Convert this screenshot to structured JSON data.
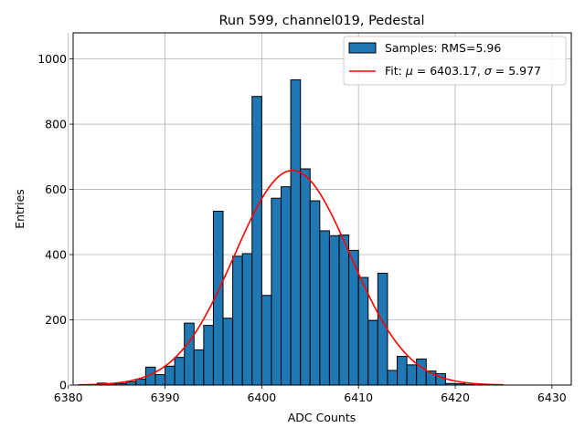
{
  "chart_data": {
    "type": "bar",
    "title": "Run 599, channel019, Pedestal",
    "xlabel": "ADC Counts",
    "ylabel": "Entries",
    "xlim": [
      6380.5,
      6432
    ],
    "ylim": [
      0,
      1080
    ],
    "xticks": [
      6380,
      6390,
      6400,
      6410,
      6420,
      6430
    ],
    "yticks": [
      0,
      200,
      400,
      600,
      800,
      1000
    ],
    "grid": true,
    "legend_position": "top-right",
    "bin_width": 1,
    "histogram": {
      "name": "Samples: RMS=5.96",
      "color": "#1f77b4",
      "bin_starts": [
        6383,
        6384,
        6385,
        6386,
        6387,
        6388,
        6389,
        6390,
        6391,
        6392,
        6393,
        6394,
        6395,
        6396,
        6397,
        6398,
        6399,
        6400,
        6401,
        6402,
        6403,
        6404,
        6405,
        6406,
        6407,
        6408,
        6409,
        6410,
        6411,
        6412,
        6413,
        6414,
        6415,
        6416,
        6417,
        6418,
        6419,
        6420,
        6421
      ],
      "counts": [
        6,
        4,
        5,
        10,
        18,
        55,
        32,
        58,
        85,
        190,
        108,
        183,
        533,
        205,
        395,
        403,
        885,
        275,
        573,
        608,
        936,
        663,
        565,
        473,
        458,
        460,
        413,
        330,
        198,
        343,
        45,
        88,
        62,
        80,
        43,
        35,
        5,
        4,
        2
      ]
    },
    "fit": {
      "name_prefix": "Fit: ",
      "name_mu": "μ",
      "name_mu_value": " = 6403.17, ",
      "name_sigma": "σ",
      "name_sigma_value": " = 5.977",
      "type": "gaussian",
      "mu": 6403.17,
      "sigma": 5.977,
      "amplitude": 658,
      "x_range": [
        6381,
        6425
      ],
      "color": "#ff0000"
    }
  }
}
